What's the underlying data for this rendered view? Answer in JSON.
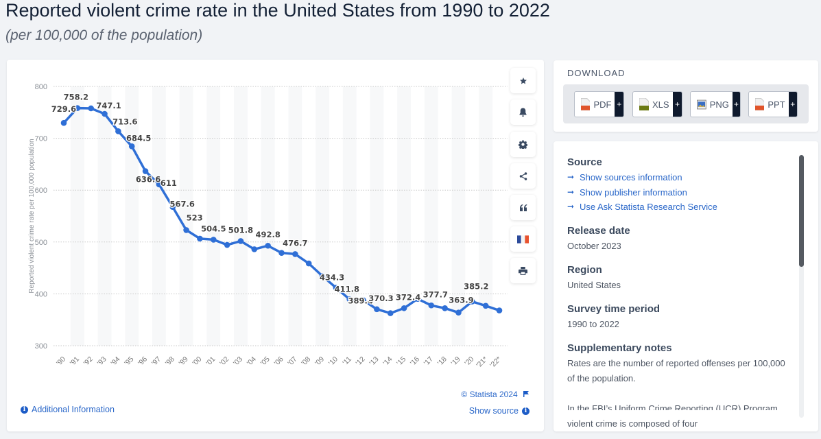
{
  "header": {
    "title": "Reported violent crime rate in the United States from 1990 to 2022",
    "subtitle": "(per 100,000 of the population)"
  },
  "toolbar": {
    "buttons": [
      {
        "name": "favorite",
        "icon": "star-icon"
      },
      {
        "name": "notification",
        "icon": "bell-icon"
      },
      {
        "name": "settings",
        "icon": "gear-icon"
      },
      {
        "name": "share",
        "icon": "share-icon"
      },
      {
        "name": "cite",
        "icon": "quote-icon"
      },
      {
        "name": "language",
        "icon": "french-flag-icon"
      },
      {
        "name": "print",
        "icon": "printer-icon"
      }
    ]
  },
  "chart_footer": {
    "copyright": "© Statista 2024",
    "additional_info": "Additional Information",
    "show_source": "Show source"
  },
  "download": {
    "title": "DOWNLOAD",
    "buttons": [
      {
        "label": "PDF",
        "plus": "+",
        "icon": "pdf-file-icon",
        "color": "#e0542a"
      },
      {
        "label": "XLS",
        "plus": "+",
        "icon": "xls-file-icon",
        "color": "#6b7a14"
      },
      {
        "label": "PNG",
        "plus": "+",
        "icon": "png-file-icon",
        "color": "#3a6fc4"
      },
      {
        "label": "PPT",
        "plus": "+",
        "icon": "ppt-file-icon",
        "color": "#e0542a"
      }
    ]
  },
  "info": {
    "source_heading": "Source",
    "links": [
      "Show sources information",
      "Show publisher information",
      "Use Ask Statista Research Service"
    ],
    "release_heading": "Release date",
    "release_value": "October 2023",
    "region_heading": "Region",
    "region_value": "United States",
    "period_heading": "Survey time period",
    "period_value": "1990 to 2022",
    "notes_heading": "Supplementary notes",
    "notes_value": "Rates are the number of reported offenses per 100,000 of the population.",
    "notes_value2": "In the FBI’s Uniform Crime Reporting (UCR) Program, violent crime is composed of four"
  },
  "colors": {
    "line": "#2f6fd6",
    "link": "#2a67c9"
  },
  "chart_data": {
    "type": "line",
    "title": "Reported violent crime rate in the United States from 1990 to 2022",
    "subtitle": "(per 100,000 of the population)",
    "xlabel": "",
    "ylabel": "Reported violent crime rate per 100,000 population",
    "ylim": [
      300,
      800
    ],
    "yticks": [
      800,
      700,
      600,
      500,
      400,
      300
    ],
    "grid": true,
    "categories": [
      "'90",
      "'91",
      "'92",
      "'93",
      "'94",
      "'95",
      "'96",
      "'97",
      "'98",
      "'99",
      "'00",
      "'01",
      "'02",
      "'03",
      "'04",
      "'05",
      "'06",
      "'07",
      "'08",
      "'09",
      "'10",
      "'11",
      "'12",
      "'13",
      "'14",
      "'15",
      "'16",
      "'17",
      "'18",
      "'19",
      "'20",
      "'21*",
      "'22*"
    ],
    "series": [
      {
        "name": "Violent crime rate",
        "values": [
          729.6,
          758.2,
          757.7,
          747.1,
          713.6,
          684.5,
          636.6,
          611,
          567.6,
          523,
          506.5,
          504.5,
          494.4,
          501.8,
          486,
          492.8,
          479,
          476.7,
          458.6,
          434.3,
          411.8,
          389.4,
          387.8,
          370.3,
          362.7,
          372.4,
          390.4,
          377.7,
          372.3,
          363.9,
          385.2,
          377,
          368
        ]
      }
    ],
    "data_labels": [
      {
        "index": 0,
        "text": "729.6"
      },
      {
        "index": 1,
        "text": "758.2"
      },
      {
        "index": 3,
        "text": "747.1"
      },
      {
        "index": 4,
        "text": "713.6"
      },
      {
        "index": 5,
        "text": "684.5"
      },
      {
        "index": 6,
        "text": "636.6"
      },
      {
        "index": 7,
        "text": "611"
      },
      {
        "index": 8,
        "text": "567.6"
      },
      {
        "index": 9,
        "text": "523"
      },
      {
        "index": 11,
        "text": "504.5"
      },
      {
        "index": 13,
        "text": "501.8"
      },
      {
        "index": 15,
        "text": "492.8"
      },
      {
        "index": 17,
        "text": "476.7"
      },
      {
        "index": 19,
        "text": "434.3"
      },
      {
        "index": 20,
        "text": "411.8"
      },
      {
        "index": 21,
        "text": "389.4"
      },
      {
        "index": 23,
        "text": "370.3"
      },
      {
        "index": 25,
        "text": "372.4"
      },
      {
        "index": 27,
        "text": "377.7"
      },
      {
        "index": 29,
        "text": "363.9"
      },
      {
        "index": 30,
        "text": "385.2"
      }
    ]
  }
}
